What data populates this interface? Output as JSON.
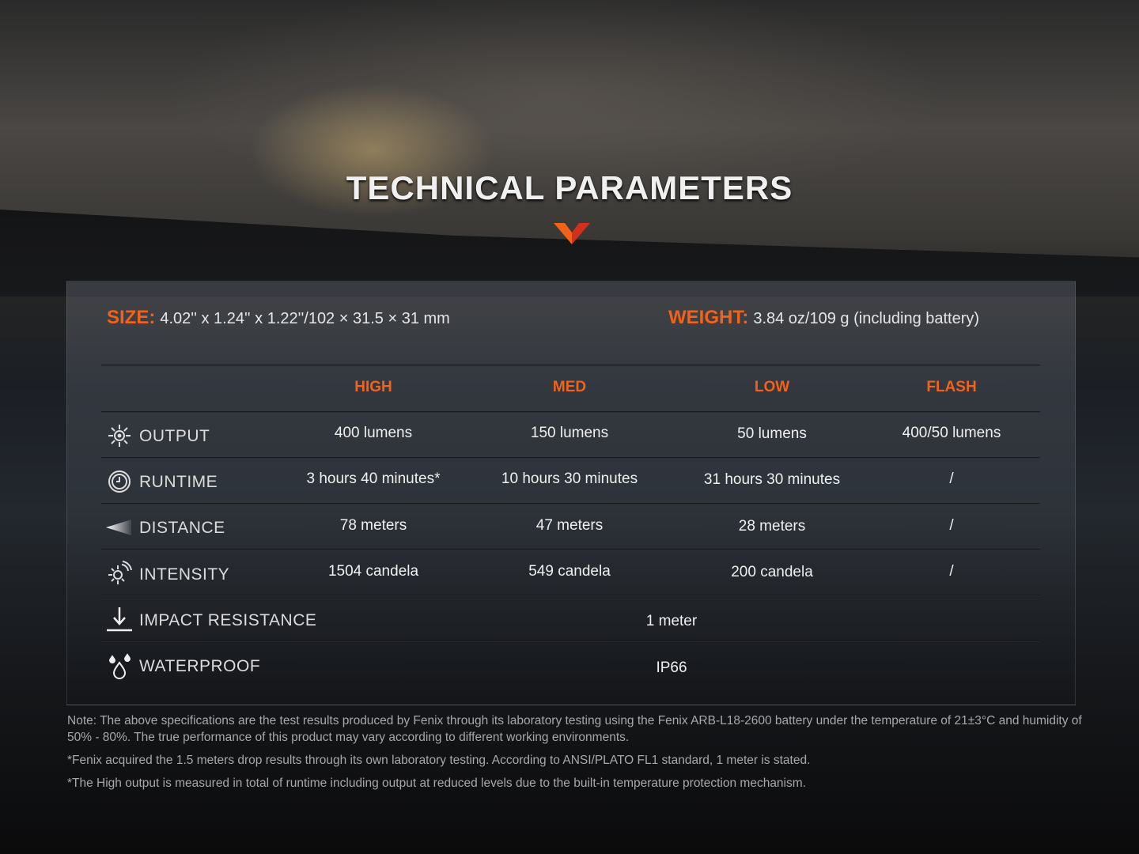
{
  "title": "TECHNICAL PARAMETERS",
  "accent": "#f2621a",
  "size": {
    "label": "SIZE:",
    "value": "4.02'' x 1.24'' x 1.22''/102 × 31.5 × 31 mm"
  },
  "weight": {
    "label": "WEIGHT:",
    "value": "3.84 oz/109 g (including battery)"
  },
  "columns": [
    "HIGH",
    "MED",
    "LOW",
    "FLASH"
  ],
  "rows": [
    {
      "icon": "sun-icon",
      "label": "OUTPUT",
      "values": [
        "400 lumens",
        "150 lumens",
        "50 lumens",
        "400/50 lumens"
      ]
    },
    {
      "icon": "clock-icon",
      "label": "RUNTIME",
      "values": [
        "3 hours 40 minutes*",
        "10 hours 30 minutes",
        "31 hours 30 minutes",
        "/"
      ]
    },
    {
      "icon": "beam-icon",
      "label": "DISTANCE",
      "values": [
        "78 meters",
        "47 meters",
        "28 meters",
        "/"
      ]
    },
    {
      "icon": "intensity-icon",
      "label": "INTENSITY",
      "values": [
        "1504 candela",
        "549 candela",
        "200 candela",
        "/"
      ]
    },
    {
      "icon": "drop-arrow-icon",
      "label": "IMPACT RESISTANCE",
      "value": "1 meter"
    },
    {
      "icon": "water-drops-icon",
      "label": "WATERPROOF",
      "value": "IP66"
    }
  ],
  "notes": [
    "Note: The above specifications are the test results produced by Fenix through its laboratory testing using the Fenix ARB-L18-2600 battery under the temperature of 21±3°C and humidity of 50% - 80%. The true performance of this product may vary according to different working environments.",
    "*Fenix acquired the 1.5 meters drop results through its own laboratory testing. According to ANSI/PLATO FL1 standard, 1 meter is stated.",
    "*The High output is measured in total of runtime including output at reduced levels due to the built-in temperature protection mechanism."
  ]
}
